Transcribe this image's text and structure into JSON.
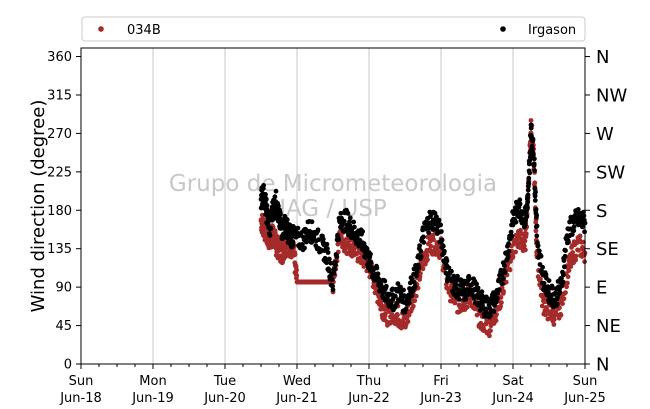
{
  "chart_data": {
    "type": "scatter",
    "title": "",
    "xlabel": "",
    "ylabel": "Wind direction (degree)",
    "ylim": [
      0,
      370
    ],
    "yticks": [
      0,
      45,
      90,
      135,
      180,
      225,
      270,
      315,
      360
    ],
    "right_axis_labels": [
      "N",
      "NE",
      "E",
      "SE",
      "S",
      "SW",
      "W",
      "NW",
      "N"
    ],
    "xlim": [
      "2023-06-18",
      "2023-06-25"
    ],
    "x_ticks": [
      {
        "day": "Sun",
        "date": "Jun-18"
      },
      {
        "day": "Mon",
        "date": "Jun-19"
      },
      {
        "day": "Tue",
        "date": "Jun-20"
      },
      {
        "day": "Wed",
        "date": "Jun-21"
      },
      {
        "day": "Thu",
        "date": "Jun-22"
      },
      {
        "day": "Fri",
        "date": "Jun-23"
      },
      {
        "day": "Sat",
        "date": "Jun-24"
      },
      {
        "day": "Sun",
        "date": "Jun-25"
      }
    ],
    "grid": "vertical",
    "legend_position": "top",
    "watermark": [
      "Grupo de Micrometeorologia",
      "IAG / USP"
    ],
    "series": [
      {
        "name": "034B",
        "color": "#a52a2a",
        "points": [
          [
            "2023-06-20 12:00",
            168
          ],
          [
            "2023-06-20 13:00",
            160
          ],
          [
            "2023-06-20 14:00",
            150
          ],
          [
            "2023-06-20 15:00",
            145
          ],
          [
            "2023-06-20 16:00",
            152
          ],
          [
            "2023-06-20 17:00",
            140
          ],
          [
            "2023-06-20 18:00",
            135
          ],
          [
            "2023-06-20 19:00",
            130
          ],
          [
            "2023-06-20 20:00",
            138
          ],
          [
            "2023-06-20 21:00",
            142
          ],
          [
            "2023-06-20 22:00",
            136
          ],
          [
            "2023-06-20 23:00",
            128
          ],
          [
            "2023-06-21 00:00",
            96
          ],
          [
            "2023-06-21 02:00",
            96
          ],
          [
            "2023-06-21 04:00",
            96
          ],
          [
            "2023-06-21 06:00",
            96
          ],
          [
            "2023-06-21 08:00",
            96
          ],
          [
            "2023-06-21 10:00",
            96
          ],
          [
            "2023-06-21 12:00",
            96
          ],
          [
            "2023-06-21 14:00",
            150
          ],
          [
            "2023-06-21 16:00",
            142
          ],
          [
            "2023-06-21 18:00",
            140
          ],
          [
            "2023-06-21 20:00",
            132
          ],
          [
            "2023-06-21 22:00",
            125
          ],
          [
            "2023-06-22 00:00",
            115
          ],
          [
            "2023-06-22 02:00",
            95
          ],
          [
            "2023-06-22 04:00",
            70
          ],
          [
            "2023-06-22 06:00",
            58
          ],
          [
            "2023-06-22 08:00",
            62
          ],
          [
            "2023-06-22 10:00",
            55
          ],
          [
            "2023-06-22 12:00",
            48
          ],
          [
            "2023-06-22 14:00",
            72
          ],
          [
            "2023-06-22 16:00",
            95
          ],
          [
            "2023-06-22 18:00",
            120
          ],
          [
            "2023-06-22 20:00",
            140
          ],
          [
            "2023-06-22 22:00",
            142
          ],
          [
            "2023-06-23 00:00",
            135
          ],
          [
            "2023-06-23 02:00",
            95
          ],
          [
            "2023-06-23 04:00",
            80
          ],
          [
            "2023-06-23 06:00",
            70
          ],
          [
            "2023-06-23 08:00",
            75
          ],
          [
            "2023-06-23 10:00",
            82
          ],
          [
            "2023-06-23 12:00",
            60
          ],
          [
            "2023-06-23 14:00",
            50
          ],
          [
            "2023-06-23 16:00",
            45
          ],
          [
            "2023-06-23 18:00",
            60
          ],
          [
            "2023-06-23 20:00",
            80
          ],
          [
            "2023-06-23 22:00",
            110
          ],
          [
            "2023-06-24 00:00",
            135
          ],
          [
            "2023-06-24 02:00",
            148
          ],
          [
            "2023-06-24 04:00",
            138
          ],
          [
            "2023-06-24 05:00",
            200
          ],
          [
            "2023-06-24 06:00",
            282
          ],
          [
            "2023-06-24 07:00",
            235
          ],
          [
            "2023-06-24 08:00",
            125
          ],
          [
            "2023-06-24 10:00",
            72
          ],
          [
            "2023-06-24 12:00",
            62
          ],
          [
            "2023-06-24 14:00",
            58
          ],
          [
            "2023-06-24 16:00",
            70
          ],
          [
            "2023-06-24 18:00",
            105
          ],
          [
            "2023-06-24 20:00",
            130
          ],
          [
            "2023-06-24 22:00",
            140
          ],
          [
            "2023-06-25 00:00",
            130
          ]
        ]
      },
      {
        "name": "Irgason",
        "color": "#000000",
        "points": [
          [
            "2023-06-20 12:00",
            195
          ],
          [
            "2023-06-20 13:00",
            198
          ],
          [
            "2023-06-20 14:00",
            175
          ],
          [
            "2023-06-20 15:00",
            160
          ],
          [
            "2023-06-20 16:00",
            182
          ],
          [
            "2023-06-20 17:00",
            190
          ],
          [
            "2023-06-20 18:00",
            170
          ],
          [
            "2023-06-20 19:00",
            158
          ],
          [
            "2023-06-20 20:00",
            162
          ],
          [
            "2023-06-20 21:00",
            155
          ],
          [
            "2023-06-20 22:00",
            150
          ],
          [
            "2023-06-20 23:00",
            148
          ],
          [
            "2023-06-21 02:00",
            145
          ],
          [
            "2023-06-21 04:00",
            158
          ],
          [
            "2023-06-21 06:00",
            150
          ],
          [
            "2023-06-21 08:00",
            140
          ],
          [
            "2023-06-21 10:00",
            128
          ],
          [
            "2023-06-21 12:00",
            95
          ],
          [
            "2023-06-21 14:00",
            162
          ],
          [
            "2023-06-21 16:00",
            170
          ],
          [
            "2023-06-21 18:00",
            160
          ],
          [
            "2023-06-21 20:00",
            150
          ],
          [
            "2023-06-21 22:00",
            142
          ],
          [
            "2023-06-22 00:00",
            120
          ],
          [
            "2023-06-22 02:00",
            105
          ],
          [
            "2023-06-22 04:00",
            92
          ],
          [
            "2023-06-22 06:00",
            80
          ],
          [
            "2023-06-22 08:00",
            75
          ],
          [
            "2023-06-22 10:00",
            85
          ],
          [
            "2023-06-22 12:00",
            70
          ],
          [
            "2023-06-22 14:00",
            90
          ],
          [
            "2023-06-22 16:00",
            108
          ],
          [
            "2023-06-22 18:00",
            150
          ],
          [
            "2023-06-22 20:00",
            168
          ],
          [
            "2023-06-22 22:00",
            170
          ],
          [
            "2023-06-23 00:00",
            150
          ],
          [
            "2023-06-23 02:00",
            110
          ],
          [
            "2023-06-23 04:00",
            95
          ],
          [
            "2023-06-23 06:00",
            88
          ],
          [
            "2023-06-23 08:00",
            85
          ],
          [
            "2023-06-23 10:00",
            95
          ],
          [
            "2023-06-23 12:00",
            80
          ],
          [
            "2023-06-23 14:00",
            70
          ],
          [
            "2023-06-23 16:00",
            65
          ],
          [
            "2023-06-23 18:00",
            75
          ],
          [
            "2023-06-23 20:00",
            98
          ],
          [
            "2023-06-23 22:00",
            130
          ],
          [
            "2023-06-24 00:00",
            168
          ],
          [
            "2023-06-24 02:00",
            185
          ],
          [
            "2023-06-24 04:00",
            170
          ],
          [
            "2023-06-24 05:00",
            190
          ],
          [
            "2023-06-24 06:00",
            272
          ],
          [
            "2023-06-24 07:00",
            240
          ],
          [
            "2023-06-24 08:00",
            150
          ],
          [
            "2023-06-24 10:00",
            100
          ],
          [
            "2023-06-24 12:00",
            85
          ],
          [
            "2023-06-24 14:00",
            78
          ],
          [
            "2023-06-24 16:00",
            90
          ],
          [
            "2023-06-24 18:00",
            150
          ],
          [
            "2023-06-24 20:00",
            165
          ],
          [
            "2023-06-24 22:00",
            170
          ],
          [
            "2023-06-25 00:00",
            165
          ]
        ]
      }
    ]
  }
}
